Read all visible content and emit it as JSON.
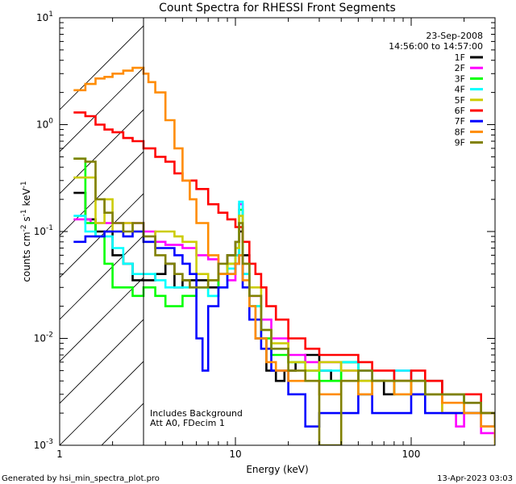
{
  "chart_data": {
    "type": "line",
    "title": "Count Spectra for RHESSI Front Segments",
    "xlabel": "Energy (keV)",
    "ylabel_parts": [
      "counts cm",
      "-2",
      " s",
      "-1",
      " keV",
      "-1"
    ],
    "xscale": "log",
    "yscale": "log",
    "xlim": [
      1,
      300
    ],
    "ylim": [
      0.001,
      10
    ],
    "x_ticks": [
      {
        "value": 1,
        "label": "1"
      },
      {
        "value": 10,
        "label": "10"
      },
      {
        "value": 100,
        "label": "100"
      }
    ],
    "y_ticks": [
      {
        "value": 0.001,
        "base": "10",
        "exp": "-3"
      },
      {
        "value": 0.01,
        "base": "10",
        "exp": "-2"
      },
      {
        "value": 0.1,
        "base": "10",
        "exp": "-1"
      },
      {
        "value": 1,
        "base": "10",
        "exp": "0"
      },
      {
        "value": 10,
        "base": "10",
        "exp": "1"
      }
    ],
    "date": "23-Sep-2008",
    "time_range": "14:56:00 to 14:57:00",
    "hatched_region_max_energy": 3,
    "notes": [
      "Includes Background",
      "Att A0, FDecim 1"
    ],
    "series": [
      {
        "name": "1F",
        "color": "#000000",
        "x": [
          1.2,
          1.4,
          1.6,
          1.8,
          2.0,
          2.3,
          2.6,
          3.0,
          3.5,
          4.0,
          4.5,
          5.0,
          6.0,
          7.0,
          8.0,
          9.0,
          10.0,
          10.5,
          11.0,
          12.0,
          13.0,
          15.0,
          17.0,
          19.0,
          22.0,
          25.0,
          30.0,
          35.0,
          40.0,
          50.0,
          60.0,
          70.0,
          80.0,
          100.0,
          120.0,
          150.0,
          200.0,
          250.0,
          300.0
        ],
        "y": [
          0.23,
          0.13,
          0.1,
          0.1,
          0.06,
          0.05,
          0.035,
          0.035,
          0.04,
          0.05,
          0.03,
          0.035,
          0.035,
          0.03,
          0.04,
          0.06,
          0.08,
          0.1,
          0.06,
          0.02,
          0.01,
          0.005,
          0.004,
          0.005,
          0.006,
          0.007,
          0.005,
          0.004,
          0.006,
          0.004,
          0.004,
          0.003,
          0.004,
          0.003,
          0.004,
          0.003,
          0.0025,
          0.002,
          0.002
        ]
      },
      {
        "name": "2F",
        "color": "#ff00ff",
        "x": [
          1.2,
          1.5,
          2.0,
          2.5,
          3.0,
          3.5,
          4.0,
          5.0,
          6.0,
          7.0,
          8.0,
          9.0,
          10.0,
          10.5,
          11.0,
          12.0,
          14.0,
          16.0,
          20.0,
          25.0,
          30.0,
          40.0,
          50.0,
          60.0,
          80.0,
          100.0,
          120.0,
          150.0,
          180.0,
          200.0,
          250.0,
          300.0
        ],
        "y": [
          0.13,
          0.12,
          0.12,
          0.12,
          0.1,
          0.08,
          0.075,
          0.07,
          0.06,
          0.055,
          0.04,
          0.035,
          0.06,
          0.18,
          0.04,
          0.025,
          0.015,
          0.01,
          0.007,
          0.006,
          0.006,
          0.005,
          0.005,
          0.004,
          0.005,
          0.004,
          0.003,
          0.002,
          0.0015,
          0.002,
          0.0013,
          0.001
        ]
      },
      {
        "name": "3F",
        "color": "#00ff00",
        "x": [
          1.2,
          1.4,
          1.6,
          1.8,
          2.0,
          2.3,
          2.6,
          3.0,
          3.5,
          4.0,
          5.0,
          6.0,
          7.0,
          8.0,
          9.0,
          10.0,
          10.5,
          11.0,
          12.0,
          14.0,
          16.0,
          20.0,
          25.0,
          30.0,
          40.0,
          50.0,
          60.0,
          80.0,
          100.0,
          120.0,
          150.0,
          200.0,
          250.0,
          300.0
        ],
        "y": [
          0.48,
          0.12,
          0.09,
          0.05,
          0.03,
          0.03,
          0.025,
          0.03,
          0.025,
          0.02,
          0.025,
          0.03,
          0.025,
          0.04,
          0.05,
          0.06,
          0.16,
          0.04,
          0.02,
          0.01,
          0.007,
          0.006,
          0.005,
          0.004,
          0.006,
          0.003,
          0.004,
          0.003,
          0.004,
          0.003,
          0.003,
          0.002,
          0.002,
          0.0015
        ]
      },
      {
        "name": "4F",
        "color": "#00ffff",
        "x": [
          1.2,
          1.4,
          1.6,
          1.8,
          2.0,
          2.3,
          2.6,
          3.0,
          3.5,
          4.0,
          5.0,
          6.0,
          7.0,
          8.0,
          9.0,
          10.0,
          10.5,
          11.0,
          12.0,
          14.0,
          16.0,
          20.0,
          25.0,
          30.0,
          40.0,
          50.0,
          60.0,
          80.0,
          100.0,
          120.0,
          150.0,
          200.0,
          250.0,
          300.0
        ],
        "y": [
          0.14,
          0.1,
          0.09,
          0.09,
          0.07,
          0.05,
          0.04,
          0.04,
          0.035,
          0.03,
          0.03,
          0.03,
          0.025,
          0.03,
          0.045,
          0.06,
          0.19,
          0.04,
          0.02,
          0.012,
          0.008,
          0.006,
          0.005,
          0.005,
          0.006,
          0.005,
          0.004,
          0.005,
          0.004,
          0.003,
          0.003,
          0.002,
          0.002,
          0.002
        ]
      },
      {
        "name": "5F",
        "color": "#cccc00",
        "x": [
          1.2,
          1.4,
          1.6,
          1.8,
          2.0,
          2.3,
          2.6,
          3.0,
          3.5,
          4.0,
          4.5,
          5.0,
          6.0,
          7.0,
          8.0,
          9.0,
          10.0,
          10.5,
          11.0,
          12.0,
          14.0,
          16.0,
          20.0,
          25.0,
          30.0,
          40.0,
          50.0,
          60.0,
          80.0,
          100.0,
          120.0,
          150.0,
          200.0,
          250.0,
          300.0
        ],
        "y": [
          0.32,
          0.32,
          0.12,
          0.2,
          0.1,
          0.12,
          0.1,
          0.08,
          0.1,
          0.1,
          0.09,
          0.08,
          0.04,
          0.035,
          0.04,
          0.05,
          0.07,
          0.14,
          0.05,
          0.03,
          0.012,
          0.009,
          0.006,
          0.005,
          0.006,
          0.005,
          0.004,
          0.004,
          0.004,
          0.003,
          0.003,
          0.002,
          0.002,
          0.0015,
          0.001
        ]
      },
      {
        "name": "6F",
        "color": "#ff0000",
        "x": [
          1.2,
          1.4,
          1.6,
          1.8,
          2.0,
          2.3,
          2.6,
          3.0,
          3.5,
          4.0,
          4.5,
          5.0,
          6.0,
          7.0,
          8.0,
          9.0,
          10.0,
          11.0,
          12.0,
          13.0,
          14.0,
          15.0,
          17.0,
          20.0,
          25.0,
          30.0,
          40.0,
          50.0,
          60.0,
          80.0,
          100.0,
          120.0,
          150.0,
          200.0,
          250.0,
          300.0
        ],
        "y": [
          1.3,
          1.2,
          1.0,
          0.9,
          0.85,
          0.75,
          0.7,
          0.6,
          0.5,
          0.45,
          0.35,
          0.3,
          0.25,
          0.18,
          0.15,
          0.13,
          0.11,
          0.08,
          0.05,
          0.04,
          0.03,
          0.02,
          0.015,
          0.01,
          0.008,
          0.007,
          0.007,
          0.006,
          0.005,
          0.004,
          0.005,
          0.004,
          0.003,
          0.003,
          0.002,
          0.0015
        ]
      },
      {
        "name": "7F",
        "color": "#0000ff",
        "x": [
          1.2,
          1.4,
          1.6,
          1.8,
          2.0,
          2.3,
          2.6,
          3.0,
          3.5,
          4.0,
          4.5,
          5.0,
          5.5,
          6.0,
          6.5,
          7.0,
          8.0,
          9.0,
          10.0,
          10.5,
          11.0,
          12.0,
          14.0,
          16.0,
          20.0,
          25.0,
          30.0,
          40.0,
          50.0,
          60.0,
          80.0,
          100.0,
          120.0,
          150.0,
          200.0,
          250.0,
          300.0
        ],
        "y": [
          0.08,
          0.09,
          0.09,
          0.1,
          0.1,
          0.09,
          0.1,
          0.08,
          0.07,
          0.07,
          0.06,
          0.05,
          0.04,
          0.01,
          0.005,
          0.02,
          0.03,
          0.04,
          0.05,
          0.06,
          0.03,
          0.015,
          0.008,
          0.005,
          0.003,
          0.0015,
          0.002,
          0.002,
          0.003,
          0.002,
          0.002,
          0.003,
          0.002,
          0.002,
          0.002,
          0.0015,
          0.0015
        ]
      },
      {
        "name": "8F",
        "color": "#ff8c00",
        "x": [
          1.2,
          1.4,
          1.6,
          1.8,
          2.0,
          2.3,
          2.6,
          3.0,
          3.2,
          3.5,
          4.0,
          4.5,
          5.0,
          5.5,
          6.0,
          7.0,
          8.0,
          9.0,
          10.0,
          10.5,
          11.0,
          12.0,
          13.0,
          15.0,
          17.0,
          20.0,
          25.0,
          30.0,
          40.0,
          50.0,
          60.0,
          80.0,
          100.0,
          120.0,
          150.0,
          200.0,
          250.0,
          300.0
        ],
        "y": [
          2.1,
          2.4,
          2.7,
          2.8,
          3.0,
          3.2,
          3.4,
          3.0,
          2.5,
          2.0,
          1.1,
          0.6,
          0.3,
          0.2,
          0.12,
          0.06,
          0.04,
          0.04,
          0.05,
          0.06,
          0.035,
          0.02,
          0.01,
          0.006,
          0.005,
          0.004,
          0.004,
          0.003,
          0.004,
          0.003,
          0.004,
          0.003,
          0.004,
          0.003,
          0.0025,
          0.002,
          0.0015,
          0.0012
        ]
      },
      {
        "name": "9F",
        "color": "#808000",
        "x": [
          1.2,
          1.4,
          1.6,
          1.8,
          2.0,
          2.3,
          2.6,
          3.0,
          3.5,
          4.0,
          4.5,
          5.0,
          5.5,
          6.0,
          7.0,
          8.0,
          9.0,
          10.0,
          10.5,
          11.0,
          12.0,
          14.0,
          16.0,
          20.0,
          25.0,
          30.0,
          40.0,
          50.0,
          60.0,
          80.0,
          100.0,
          120.0,
          150.0,
          200.0,
          250.0,
          300.0
        ],
        "y": [
          0.48,
          0.45,
          0.2,
          0.15,
          0.12,
          0.1,
          0.12,
          0.09,
          0.06,
          0.05,
          0.04,
          0.035,
          0.03,
          0.03,
          0.035,
          0.05,
          0.06,
          0.08,
          0.12,
          0.05,
          0.025,
          0.012,
          0.008,
          0.005,
          0.004,
          0.001,
          0.004,
          0.005,
          0.004,
          0.004,
          0.004,
          0.003,
          0.003,
          0.0025,
          0.002,
          0.0015
        ]
      }
    ]
  },
  "footer": {
    "generated_by": "Generated by hsi_min_spectra_plot.pro",
    "timestamp": "13-Apr-2023 03:03"
  }
}
